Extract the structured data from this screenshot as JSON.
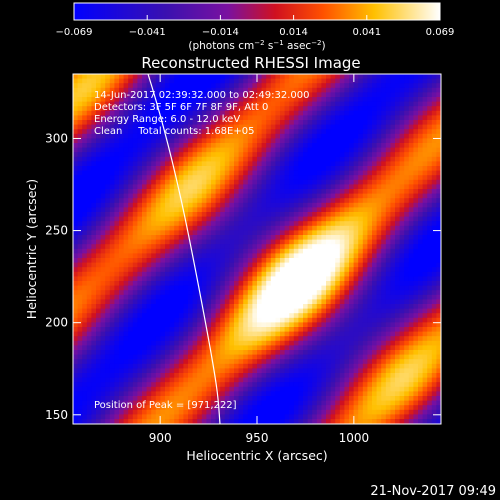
{
  "chart_data": {
    "type": "heatmap",
    "title": "Reconstructed RHESSI Image",
    "xlabel": "Heliocentric X (arcsec)",
    "ylabel": "Heliocentric Y (arcsec)",
    "xlim": [
      855,
      1045
    ],
    "ylim": [
      145,
      335
    ],
    "xticks": [
      900,
      950,
      1000
    ],
    "yticks": [
      150,
      200,
      250,
      300
    ],
    "annotations": [
      "14-Jun-2017 02:39:32.000 to 02:49:32.000",
      "Detectors: 3F 5F 6F 7F 8F 9F, Att 0",
      "Energy Range: 6.0 - 12.0 keV",
      "Clean     Total counts: 1.68E+05"
    ],
    "peak_label": "Position of Peak = [971,222]",
    "peak": [
      971,
      222
    ],
    "colorbar": {
      "ticks": [
        "-0.069",
        "-0.041",
        "-0.014",
        "0.014",
        "0.041",
        "0.069"
      ],
      "min": -0.069,
      "max": 0.069,
      "units_label": "(photons cm-2 s-1 asec-2)"
    },
    "colors": {
      "background": "#000000",
      "low": "#0000ff",
      "mid": "#5a0aa0",
      "high": "#ff2000",
      "top": "#ffffff"
    },
    "footer_date": "21-Nov-2017 09:49"
  }
}
